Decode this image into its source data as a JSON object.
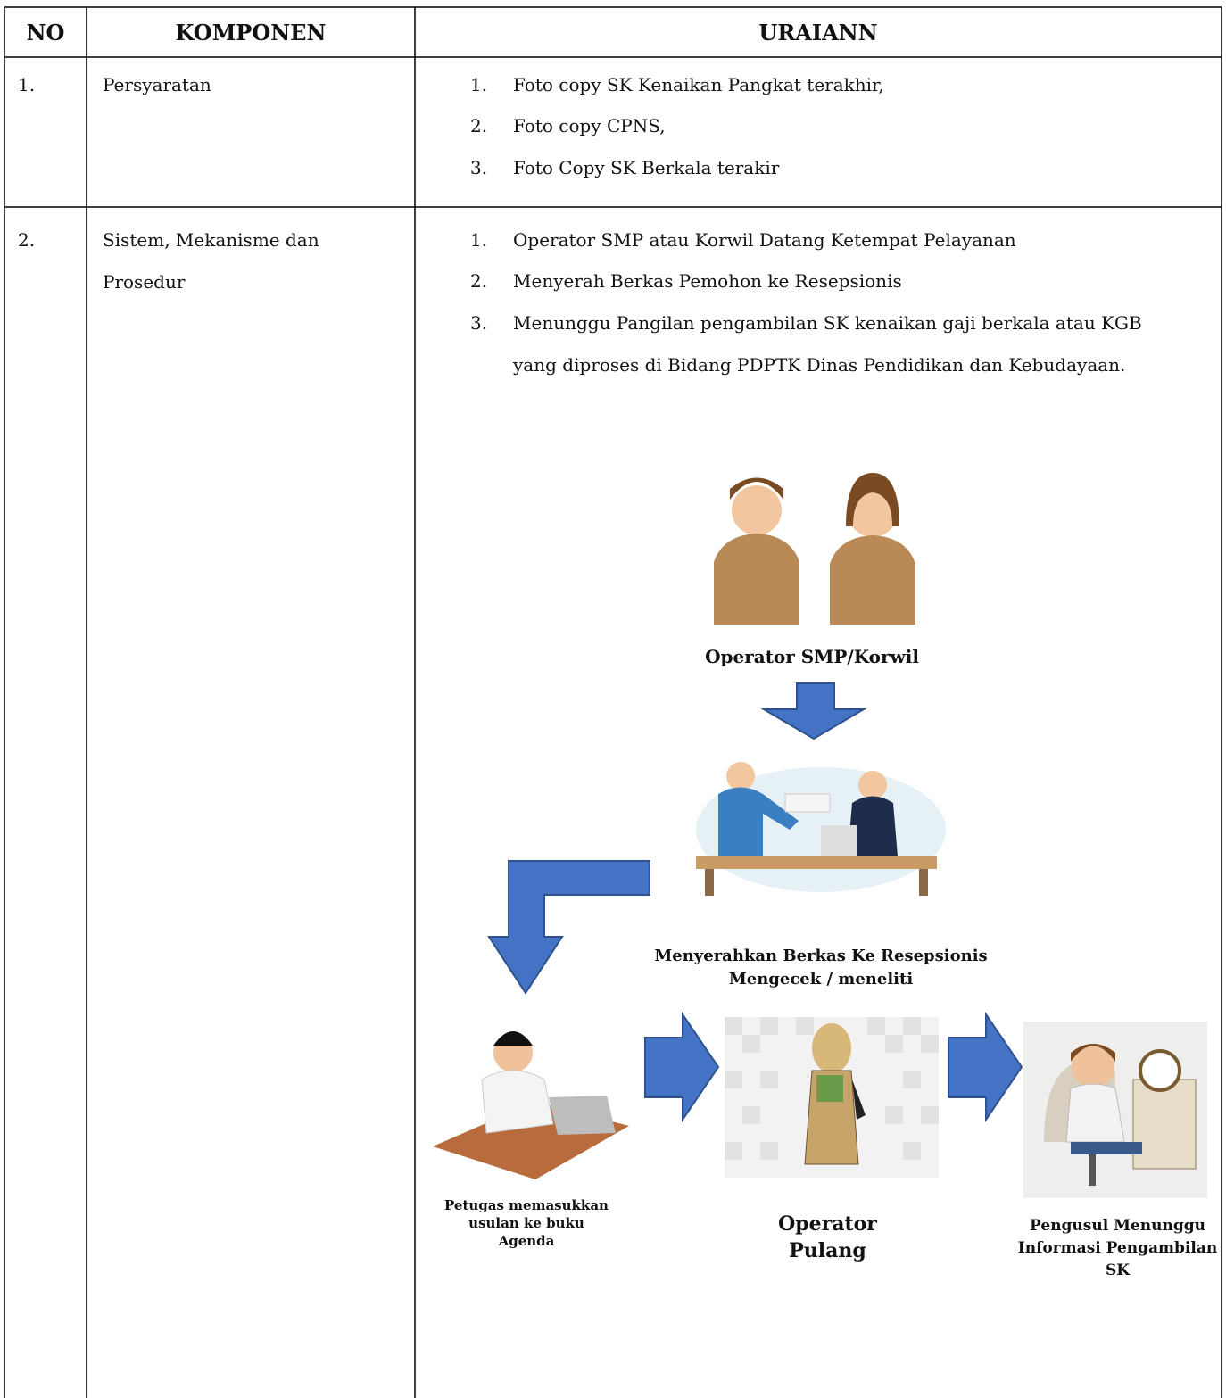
{
  "table": {
    "header": [
      "NO",
      "KOMPONEN",
      "URAIANN"
    ],
    "rows": [
      {
        "no": "1.",
        "komponen": "Persyaratan",
        "items": [
          {
            "num": "1.",
            "text": "Foto copy SK Kenaikan Pangkat terakhir,"
          },
          {
            "num": "2.",
            "text": "Foto copy CPNS,"
          },
          {
            "num": "3.",
            "text": "Foto Copy SK Berkala terakir"
          }
        ]
      },
      {
        "no": "2.",
        "komponen": "Sistem, Mekanisme dan Prosedur",
        "items": [
          {
            "num": "1.",
            "text": "Operator SMP atau Korwil  Datang Ketempat Pelayanan"
          },
          {
            "num": "2.",
            "text": "Menyerah Berkas Pemohon ke Resepsionis"
          },
          {
            "num": "3.",
            "text": "Menunggu Pangilan  pengambilan SK kenaikan gaji berkala atau KGB yang diproses di Bidang PDPTK Dinas Pendidikan dan Kebudayaan."
          }
        ]
      }
    ]
  },
  "diagram": {
    "step1": "Operator SMP/Korwil",
    "step2": [
      "Menyerahkan Berkas Ke Resepsionis",
      "Mengecek / meneliti"
    ],
    "step3": "Petugas memasukkan usulan ke buku Agenda",
    "step4": "Operator Pulang",
    "step5": "Pengusul Menunggu Informasi Pengambilan SK"
  }
}
